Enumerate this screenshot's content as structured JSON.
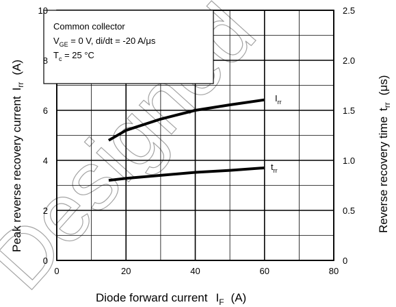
{
  "chart_data": {
    "type": "line",
    "xlabel": {
      "main": "Diode forward current",
      "sym": "I",
      "sub": "F",
      "unit": "(A)"
    },
    "ylabel_left": {
      "main": "Peak reverse recovery current",
      "sym": "I",
      "sub": "rr",
      "unit": "(A)"
    },
    "ylabel_right": {
      "main": "Reverse recovery time",
      "sym": "t",
      "sub": "rr",
      "unit": "(μs)"
    },
    "xlim": [
      0,
      80
    ],
    "ylim_left": [
      0,
      10
    ],
    "ylim_right": [
      0,
      2.5
    ],
    "x_ticks": [
      0,
      20,
      40,
      60,
      80
    ],
    "x_tick_labels": [
      "0",
      "20",
      "40",
      "60",
      "80"
    ],
    "y_left_ticks": [
      0,
      2,
      4,
      6,
      8,
      10
    ],
    "y_left_tick_labels": [
      "0",
      "2",
      "4",
      "6",
      "8",
      "10"
    ],
    "y_right_ticks": [
      0,
      0.5,
      1.0,
      1.5,
      2.0,
      2.5
    ],
    "y_right_tick_labels": [
      "0",
      "0.5",
      "1.0",
      "1.5",
      "2.0",
      "2.5"
    ],
    "grid": true,
    "conditions": {
      "line1": "Common collector",
      "line2_a": "V",
      "line2_sub": "GE",
      "line2_b": " = 0 V, di/dt = -20 A/μs",
      "line3_a": "T",
      "line3_sub": "c",
      "line3_b": " = 25 °C"
    },
    "series": [
      {
        "name": "Irr",
        "label_sym": "I",
        "label_sub": "rr",
        "axis": "left",
        "x": [
          15,
          20,
          30,
          40,
          50,
          60
        ],
        "y": [
          4.8,
          5.2,
          5.65,
          6.0,
          6.22,
          6.42
        ]
      },
      {
        "name": "trr",
        "label_sym": "t",
        "label_sub": "rr",
        "axis": "right",
        "x": [
          15,
          20,
          30,
          40,
          50,
          60
        ],
        "y": [
          0.8,
          0.82,
          0.85,
          0.88,
          0.9,
          0.925
        ]
      }
    ]
  }
}
